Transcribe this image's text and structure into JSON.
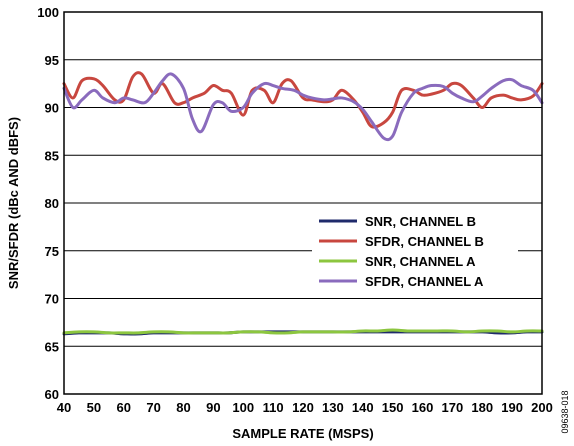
{
  "figure_id": "09638-018",
  "chart_data": {
    "type": "line",
    "title": "",
    "xlabel": "SAMPLE RATE (MSPS)",
    "ylabel": "SNR/SFDR (dBc AND dBFS)",
    "xlim": [
      40,
      200
    ],
    "ylim": [
      60,
      100
    ],
    "xticks": [
      "40",
      "50",
      "60",
      "70",
      "80",
      "90",
      "100",
      "110",
      "120",
      "130",
      "140",
      "150",
      "160",
      "170",
      "180",
      "190",
      "200"
    ],
    "yticks": [
      "60",
      "65",
      "70",
      "75",
      "80",
      "85",
      "90",
      "95",
      "100"
    ],
    "grid": "horizontal",
    "legend_position": "center-right",
    "series": [
      {
        "name": "SNR, CHANNEL B",
        "color": "#1f2a6b",
        "x": [
          40,
          45,
          50,
          55,
          60,
          65,
          70,
          75,
          80,
          85,
          90,
          95,
          100,
          105,
          110,
          115,
          120,
          125,
          130,
          135,
          140,
          145,
          150,
          155,
          160,
          165,
          170,
          175,
          180,
          185,
          190,
          195,
          200
        ],
        "y": [
          66.3,
          66.4,
          66.4,
          66.4,
          66.3,
          66.3,
          66.4,
          66.4,
          66.4,
          66.4,
          66.4,
          66.4,
          66.5,
          66.5,
          66.5,
          66.5,
          66.5,
          66.5,
          66.5,
          66.5,
          66.5,
          66.5,
          66.5,
          66.5,
          66.5,
          66.5,
          66.5,
          66.5,
          66.5,
          66.4,
          66.4,
          66.5,
          66.5
        ]
      },
      {
        "name": "SFDR, CHANNEL B",
        "color": "#c8473f",
        "x": [
          40,
          43,
          46,
          50,
          53,
          57,
          60,
          63,
          66,
          70,
          73,
          77,
          80,
          83,
          87,
          90,
          93,
          96,
          100,
          103,
          107,
          110,
          113,
          116,
          120,
          123,
          127,
          130,
          133,
          137,
          140,
          143,
          147,
          150,
          153,
          157,
          160,
          163,
          167,
          170,
          173,
          177,
          180,
          183,
          187,
          190,
          193,
          197,
          200
        ],
        "y": [
          92.5,
          91.0,
          92.8,
          93.0,
          92.3,
          90.8,
          90.8,
          93.2,
          93.5,
          91.5,
          92.5,
          90.5,
          90.5,
          91.0,
          91.5,
          92.3,
          91.8,
          91.5,
          89.2,
          91.8,
          91.8,
          90.5,
          92.5,
          92.8,
          91.0,
          90.8,
          90.6,
          90.8,
          91.8,
          90.8,
          89.5,
          88.0,
          88.4,
          89.5,
          91.8,
          91.8,
          91.3,
          91.4,
          91.8,
          92.5,
          92.3,
          91.0,
          90.0,
          91.0,
          91.3,
          91.0,
          90.8,
          91.2,
          92.5
        ]
      },
      {
        "name": "SNR, CHANNEL A",
        "color": "#8cc63f",
        "x": [
          40,
          45,
          50,
          55,
          60,
          65,
          70,
          75,
          80,
          85,
          90,
          95,
          100,
          105,
          110,
          115,
          120,
          125,
          130,
          135,
          140,
          145,
          150,
          155,
          160,
          165,
          170,
          175,
          180,
          185,
          190,
          195,
          200
        ],
        "y": [
          66.4,
          66.5,
          66.5,
          66.4,
          66.4,
          66.4,
          66.5,
          66.5,
          66.4,
          66.4,
          66.4,
          66.4,
          66.5,
          66.5,
          66.4,
          66.4,
          66.5,
          66.5,
          66.5,
          66.5,
          66.6,
          66.6,
          66.7,
          66.6,
          66.6,
          66.6,
          66.6,
          66.5,
          66.6,
          66.6,
          66.5,
          66.6,
          66.6
        ]
      },
      {
        "name": "SFDR, CHANNEL A",
        "color": "#8a6bbd",
        "x": [
          40,
          43,
          46,
          50,
          53,
          57,
          60,
          63,
          67,
          70,
          73,
          76,
          80,
          83,
          86,
          90,
          93,
          96,
          100,
          103,
          107,
          110,
          113,
          117,
          120,
          123,
          127,
          130,
          133,
          137,
          140,
          143,
          147,
          150,
          153,
          157,
          160,
          163,
          167,
          170,
          173,
          177,
          180,
          183,
          187,
          190,
          193,
          197,
          200
        ],
        "y": [
          92.0,
          90.0,
          90.8,
          91.8,
          91.0,
          90.5,
          91.0,
          90.8,
          90.5,
          91.5,
          92.8,
          93.5,
          92.0,
          88.8,
          87.5,
          90.3,
          90.5,
          89.6,
          90.0,
          91.5,
          92.5,
          92.3,
          92.0,
          91.8,
          91.3,
          91.0,
          90.8,
          90.9,
          91.0,
          90.6,
          89.8,
          88.5,
          86.8,
          87.0,
          89.5,
          91.5,
          92.0,
          92.3,
          92.2,
          91.5,
          91.0,
          90.6,
          91.2,
          92.0,
          92.8,
          92.9,
          92.3,
          91.8,
          90.5
        ]
      }
    ]
  }
}
